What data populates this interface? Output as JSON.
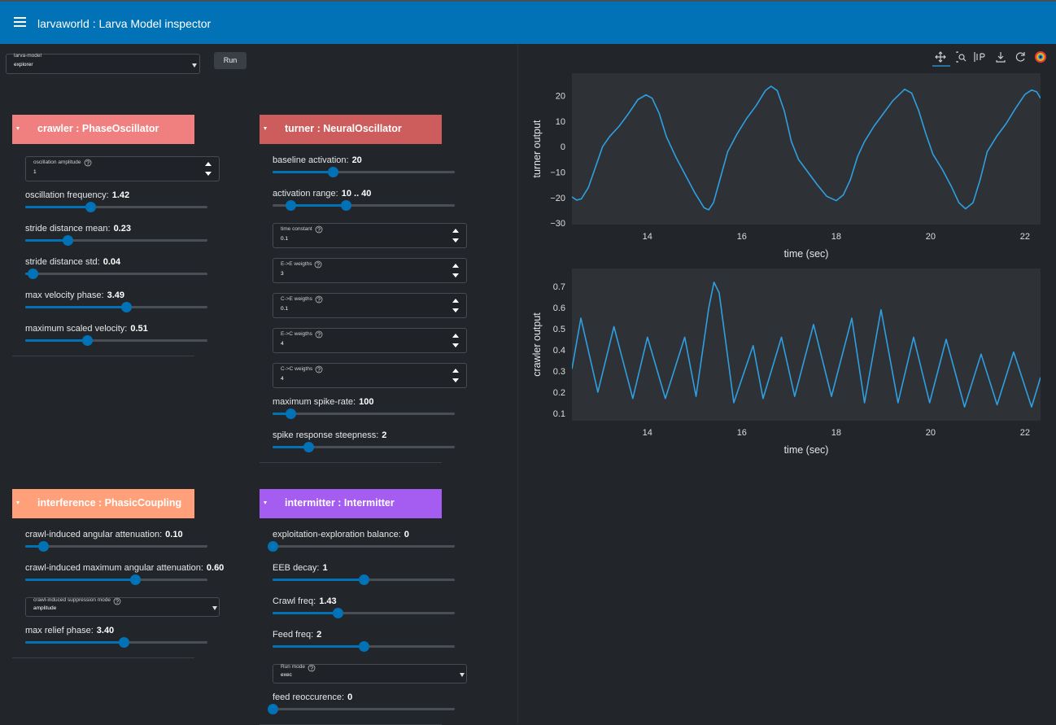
{
  "header": {
    "title": "larvaworld : Larva Model inspector"
  },
  "model_select": {
    "label": "larva-model",
    "value": "explorer"
  },
  "run_button": "Run",
  "panels": [
    {
      "title": "crawler : PhaseOscillator",
      "color": "#f08080",
      "widgets": [
        {
          "input": {
            "label": "oscillation amplitude",
            "value": "1"
          }
        },
        {
          "slider": {
            "label": "oscillation frequency:",
            "value": "1.42"
          }
        },
        {
          "slider": {
            "label": "stride distance mean:",
            "value": "0.23"
          }
        },
        {
          "slider": {
            "label": "stride distance std:",
            "value": "0.04"
          }
        },
        {
          "slider": {
            "label": "max velocity phase:",
            "value": "3.49"
          }
        },
        {
          "slider": {
            "label": "maximum scaled velocity:",
            "value": "0.51"
          }
        }
      ]
    },
    {
      "title": "turner : NeuralOscillator",
      "color": "#cd5c5c",
      "widgets": [
        {
          "slider": {
            "label": "baseline activation:",
            "value": "20"
          }
        },
        {
          "slider": {
            "label": "activation range:",
            "value": "10 .. 40"
          }
        },
        {
          "input": {
            "label": "time constant",
            "value": "0.1"
          }
        },
        {
          "input": {
            "label": "E->E weigths",
            "value": "3"
          }
        },
        {
          "input": {
            "label": "C->E weigths",
            "value": "0.1"
          }
        },
        {
          "input": {
            "label": "E->C weigths",
            "value": "4"
          }
        },
        {
          "input": {
            "label": "C->C weigths",
            "value": "4"
          }
        },
        {
          "slider": {
            "label": "maximum spike-rate:",
            "value": "100"
          }
        },
        {
          "slider": {
            "label": "spike response steepness:",
            "value": "2"
          }
        }
      ]
    },
    {
      "title": "interference : PhasicCoupling",
      "color": "#ffa07a",
      "widgets": [
        {
          "slider": {
            "label": "crawl-induced angular attenuation:",
            "value": "0.10"
          }
        },
        {
          "slider": {
            "label": "crawl-induced maximum angular attenuation:",
            "value": "0.60"
          }
        },
        {
          "select": {
            "label": "crawl-induced suppression mode",
            "value": "amplitude"
          }
        },
        {
          "slider": {
            "label": "max relief phase:",
            "value": "3.40"
          }
        }
      ]
    },
    {
      "title": "intermitter : Intermitter",
      "color": "#a55cf0",
      "widgets": [
        {
          "slider": {
            "label": "exploitation-exploration balance:",
            "value": "0"
          }
        },
        {
          "slider": {
            "label": "EEB decay:",
            "value": "1"
          }
        },
        {
          "slider": {
            "label": "Crawl freq:",
            "value": "1.43"
          }
        },
        {
          "slider": {
            "label": "Feed freq:",
            "value": "2"
          }
        },
        {
          "select": {
            "label": "Run mode",
            "value": "exec"
          }
        },
        {
          "slider": {
            "label": "feed reoccurence:",
            "value": "0"
          }
        }
      ]
    }
  ],
  "chart_data": [
    {
      "type": "line",
      "xlabel": "time (sec)",
      "ylabel": "turner output",
      "color": "#2e9fe0",
      "grid": false,
      "x": [
        12.4,
        12.5,
        12.6,
        12.75,
        12.9,
        13.05,
        13.2,
        13.4,
        13.6,
        13.8,
        13.97,
        14.1,
        14.25,
        14.4,
        14.6,
        14.8,
        15.0,
        15.2,
        15.3,
        15.4,
        15.55,
        15.7,
        15.9,
        16.1,
        16.3,
        16.5,
        16.62,
        16.75,
        16.9,
        17.05,
        17.2,
        17.4,
        17.6,
        17.8,
        18.0,
        18.15,
        18.3,
        18.45,
        18.6,
        18.8,
        19.0,
        19.2,
        19.45,
        19.6,
        19.75,
        19.9,
        20.05,
        20.25,
        20.45,
        20.6,
        20.74,
        20.9,
        21.05,
        21.2,
        21.4,
        21.6,
        21.8,
        22.0,
        22.14,
        22.25,
        22.33
      ],
      "values": [
        -19.7,
        -21,
        -20.5,
        -16,
        -8,
        0,
        4,
        8,
        13,
        18.5,
        20.3,
        19,
        13,
        4,
        -4,
        -11,
        -18,
        -24,
        -24.8,
        -22,
        -12,
        -2,
        5,
        11,
        16,
        22,
        23.7,
        22,
        14,
        2,
        -5,
        -10,
        -15,
        -19.5,
        -21.2,
        -19,
        -13,
        -4,
        2,
        8,
        13,
        18,
        22.5,
        21,
        14,
        5,
        -3,
        -9,
        -16,
        -22,
        -24.4,
        -22,
        -13,
        -2,
        4,
        9,
        15,
        20.5,
        22.2,
        21.5,
        19
      ],
      "xlim": [
        12.4,
        22.33
      ],
      "ylim": [
        -30.6,
        28.8
      ],
      "xticks": [
        14,
        16,
        18,
        20,
        22
      ],
      "yticks": [
        {
          "value": -30,
          "label": "−30"
        },
        {
          "value": -20,
          "label": "−20"
        },
        {
          "value": -10,
          "label": "−10"
        },
        0,
        10,
        20
      ]
    },
    {
      "type": "line",
      "xlabel": "time (sec)",
      "ylabel": "crawler output",
      "color": "#2e9fe0",
      "grid": false,
      "x": [
        12.4,
        12.59,
        12.95,
        13.29,
        13.69,
        14.0,
        14.38,
        14.79,
        15.03,
        15.3,
        15.41,
        15.52,
        15.83,
        16.24,
        16.45,
        16.84,
        17.12,
        17.52,
        17.9,
        18.33,
        18.6,
        18.95,
        19.31,
        19.64,
        19.98,
        20.33,
        20.72,
        21.07,
        21.41,
        21.76,
        22.14,
        22.33
      ],
      "values": [
        0.31,
        0.55,
        0.2,
        0.51,
        0.17,
        0.46,
        0.17,
        0.46,
        0.18,
        0.6,
        0.72,
        0.67,
        0.15,
        0.42,
        0.17,
        0.46,
        0.18,
        0.52,
        0.18,
        0.55,
        0.15,
        0.59,
        0.15,
        0.46,
        0.15,
        0.45,
        0.13,
        0.38,
        0.14,
        0.39,
        0.13,
        0.27
      ],
      "xlim": [
        12.4,
        22.33
      ],
      "ylim": [
        0.065,
        0.785
      ],
      "xticks": [
        14,
        16,
        18,
        20,
        22
      ],
      "yticks": [
        0.1,
        0.2,
        0.3,
        0.4,
        0.5,
        0.6,
        0.7
      ]
    }
  ]
}
